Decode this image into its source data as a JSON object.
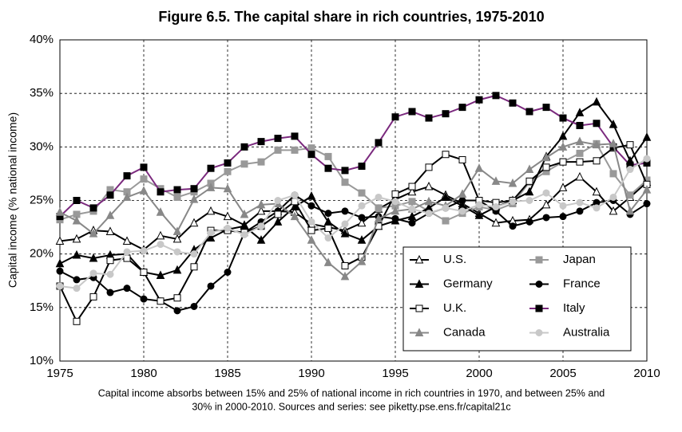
{
  "chart_data": {
    "type": "line",
    "title": "Figure 6.5. The capital share in rich countries, 1975-2010",
    "y_label": "Capital income (% national income)",
    "caption": [
      "Capital income absorbs between 15% and 25% of national income in rich countries in 1970, and between 25% and",
      "30% in 2000-2010. Sources and series: see piketty.pse.ens.fr/capital21c"
    ],
    "x": [
      1975,
      1976,
      1977,
      1978,
      1979,
      1980,
      1981,
      1982,
      1983,
      1984,
      1985,
      1986,
      1987,
      1988,
      1989,
      1990,
      1991,
      1992,
      1993,
      1994,
      1995,
      1996,
      1997,
      1998,
      1999,
      2000,
      2001,
      2002,
      2003,
      2004,
      2005,
      2006,
      2007,
      2008,
      2009,
      2010
    ],
    "xlim": [
      1975,
      2010
    ],
    "xticks": [
      1975,
      1980,
      1985,
      1990,
      1995,
      2000,
      2005,
      2010
    ],
    "ylim": [
      10,
      40
    ],
    "yticks": [
      {
        "value": 10,
        "label": "10%"
      },
      {
        "value": 15,
        "label": "15%"
      },
      {
        "value": 20,
        "label": "20%"
      },
      {
        "value": 25,
        "label": "25%"
      },
      {
        "value": 30,
        "label": "30%"
      },
      {
        "value": 35,
        "label": "35%"
      },
      {
        "value": 40,
        "label": "40%"
      }
    ],
    "grid": true,
    "legend": "lower right",
    "series": [
      {
        "name": "U.S.",
        "color": "#000000",
        "marker": "triangle",
        "marker_fill": "#ffffff",
        "marker_stroke": "#000000",
        "values": [
          21.2,
          21.4,
          22.2,
          22.1,
          21.2,
          20.4,
          21.7,
          21.4,
          22.9,
          24.0,
          23.5,
          22.7,
          24.0,
          24.0,
          23.9,
          22.8,
          22.5,
          22.2,
          22.9,
          24.2,
          25.1,
          25.8,
          26.3,
          25.5,
          24.7,
          23.8,
          22.9,
          23.1,
          23.2,
          24.6,
          26.2,
          27.2,
          25.8,
          24.0,
          25.3,
          26.7
        ]
      },
      {
        "name": "Japan",
        "color": "#999999",
        "marker": "square",
        "marker_fill": "#999999",
        "marker_stroke": "#999999",
        "values": [
          23.2,
          23.7,
          24.0,
          26.0,
          25.8,
          27.0,
          26.1,
          25.3,
          25.8,
          26.6,
          27.7,
          28.4,
          28.6,
          29.7,
          29.7,
          29.9,
          29.1,
          26.7,
          25.7,
          24.3,
          24.5,
          24.9,
          24.0,
          23.1,
          23.8,
          24.4,
          24.1,
          24.7,
          26.7,
          27.7,
          28.6,
          29.4,
          30.3,
          27.5,
          25.5,
          26.9
        ]
      },
      {
        "name": "Germany",
        "color": "#000000",
        "marker": "triangle",
        "marker_fill": "#000000",
        "marker_stroke": "#000000",
        "values": [
          19.1,
          19.9,
          19.6,
          19.9,
          20.0,
          18.3,
          18.0,
          18.5,
          20.4,
          21.5,
          22.3,
          22.6,
          21.3,
          23.0,
          24.4,
          25.4,
          23.0,
          21.9,
          21.3,
          22.6,
          23.1,
          23.5,
          24.3,
          25.3,
          24.5,
          23.6,
          24.4,
          25.0,
          25.8,
          29.1,
          31.0,
          33.2,
          34.2,
          32.1,
          28.7,
          30.9
        ]
      },
      {
        "name": "France",
        "color": "#000000",
        "marker": "circle",
        "marker_fill": "#000000",
        "marker_stroke": "#000000",
        "values": [
          18.4,
          17.6,
          17.8,
          16.4,
          16.8,
          15.8,
          15.6,
          14.7,
          15.1,
          17.0,
          18.3,
          22.0,
          23.0,
          24.0,
          25.5,
          24.5,
          23.8,
          24.0,
          23.4,
          23.5,
          23.3,
          22.9,
          23.8,
          24.3,
          25.0,
          25.0,
          24.0,
          22.6,
          23.0,
          23.4,
          23.5,
          24.0,
          24.8,
          25.0,
          23.7,
          24.7
        ]
      },
      {
        "name": "U.K.",
        "color": "#000000",
        "marker": "square",
        "marker_fill": "#ffffff",
        "marker_stroke": "#000000",
        "values": [
          17.0,
          13.7,
          16.0,
          19.4,
          19.6,
          18.3,
          15.6,
          15.9,
          18.8,
          22.2,
          22.2,
          22.0,
          22.6,
          23.7,
          24.9,
          22.2,
          22.4,
          18.9,
          19.7,
          22.6,
          25.6,
          26.3,
          28.1,
          29.3,
          28.8,
          25.0,
          24.8,
          25.0,
          26.8,
          28.1,
          28.6,
          28.6,
          28.7,
          29.9,
          30.2,
          26.5
        ]
      },
      {
        "name": "Italy",
        "color": "#7b2a7e",
        "marker": "square",
        "marker_fill": "#000000",
        "marker_stroke": "#000000",
        "values": [
          23.5,
          25.0,
          24.3,
          25.5,
          27.3,
          28.1,
          25.8,
          26.0,
          26.1,
          28.0,
          28.5,
          30.0,
          30.5,
          30.8,
          31.0,
          29.3,
          28.0,
          27.8,
          28.2,
          30.4,
          32.8,
          33.3,
          32.7,
          33.1,
          33.7,
          34.4,
          34.8,
          34.1,
          33.3,
          33.7,
          32.7,
          32.0,
          32.2,
          30.0,
          28.3,
          28.5
        ]
      },
      {
        "name": "Canada",
        "color": "#888888",
        "marker": "triangle",
        "marker_fill": "#888888",
        "marker_stroke": "#888888",
        "values": [
          23.9,
          23.1,
          21.9,
          23.6,
          25.3,
          25.9,
          23.9,
          22.1,
          25.1,
          26.2,
          26.1,
          23.7,
          24.6,
          24.7,
          23.5,
          21.3,
          19.2,
          17.9,
          19.3,
          23.3,
          24.0,
          24.2,
          24.9,
          24.5,
          25.6,
          28.0,
          26.8,
          26.6,
          27.9,
          29.0,
          30.0,
          30.5,
          30.2,
          30.3,
          24.0,
          26.0
        ]
      },
      {
        "name": "Australia",
        "color": "#c8c8c8",
        "marker": "circle",
        "marker_fill": "#c8c8c8",
        "marker_stroke": "#c8c8c8",
        "values": [
          17.0,
          16.8,
          18.2,
          18.1,
          20.2,
          20.3,
          20.9,
          20.2,
          20.0,
          22.0,
          22.4,
          21.8,
          22.6,
          25.0,
          25.5,
          23.0,
          21.5,
          22.8,
          24.5,
          25.3,
          24.9,
          24.2,
          23.8,
          24.3,
          24.0,
          24.6,
          24.4,
          24.9,
          25.0,
          25.7,
          24.5,
          24.8,
          24.3,
          25.3,
          27.9,
          28.9
        ]
      }
    ]
  }
}
